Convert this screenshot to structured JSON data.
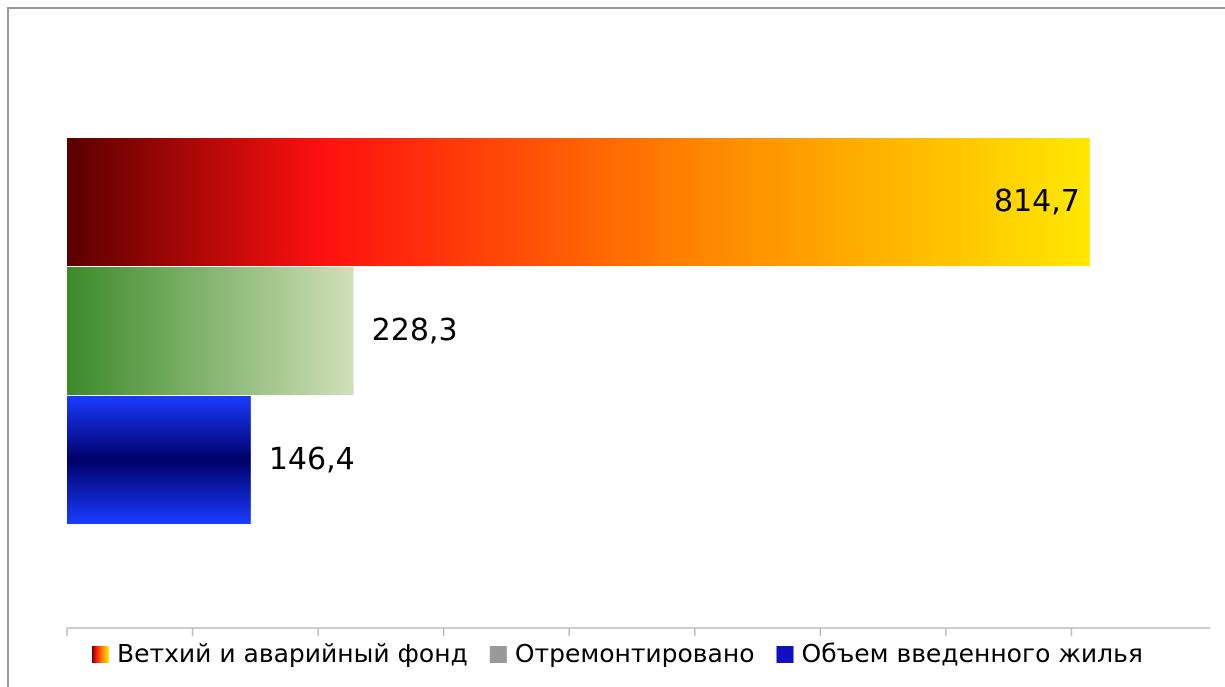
{
  "chart_data": {
    "type": "bar",
    "orientation": "horizontal",
    "series": [
      {
        "name": "Ветхий и аварийный фонд",
        "color": "#ff2000",
        "values": [
          814.7
        ],
        "value_labels": [
          "814,7"
        ]
      },
      {
        "name": "Отремонтировано",
        "color": "#8fb070",
        "values": [
          228.3
        ],
        "value_labels": [
          "228,3"
        ]
      },
      {
        "name": "Объем введенного жилья",
        "color": "#1010c0",
        "values": [
          146.4
        ],
        "value_labels": [
          "146,4"
        ]
      }
    ],
    "xlim": [
      0,
      900
    ],
    "xticks": [
      0,
      100,
      200,
      300,
      400,
      500,
      600,
      700,
      800
    ],
    "legend": "bottom"
  }
}
